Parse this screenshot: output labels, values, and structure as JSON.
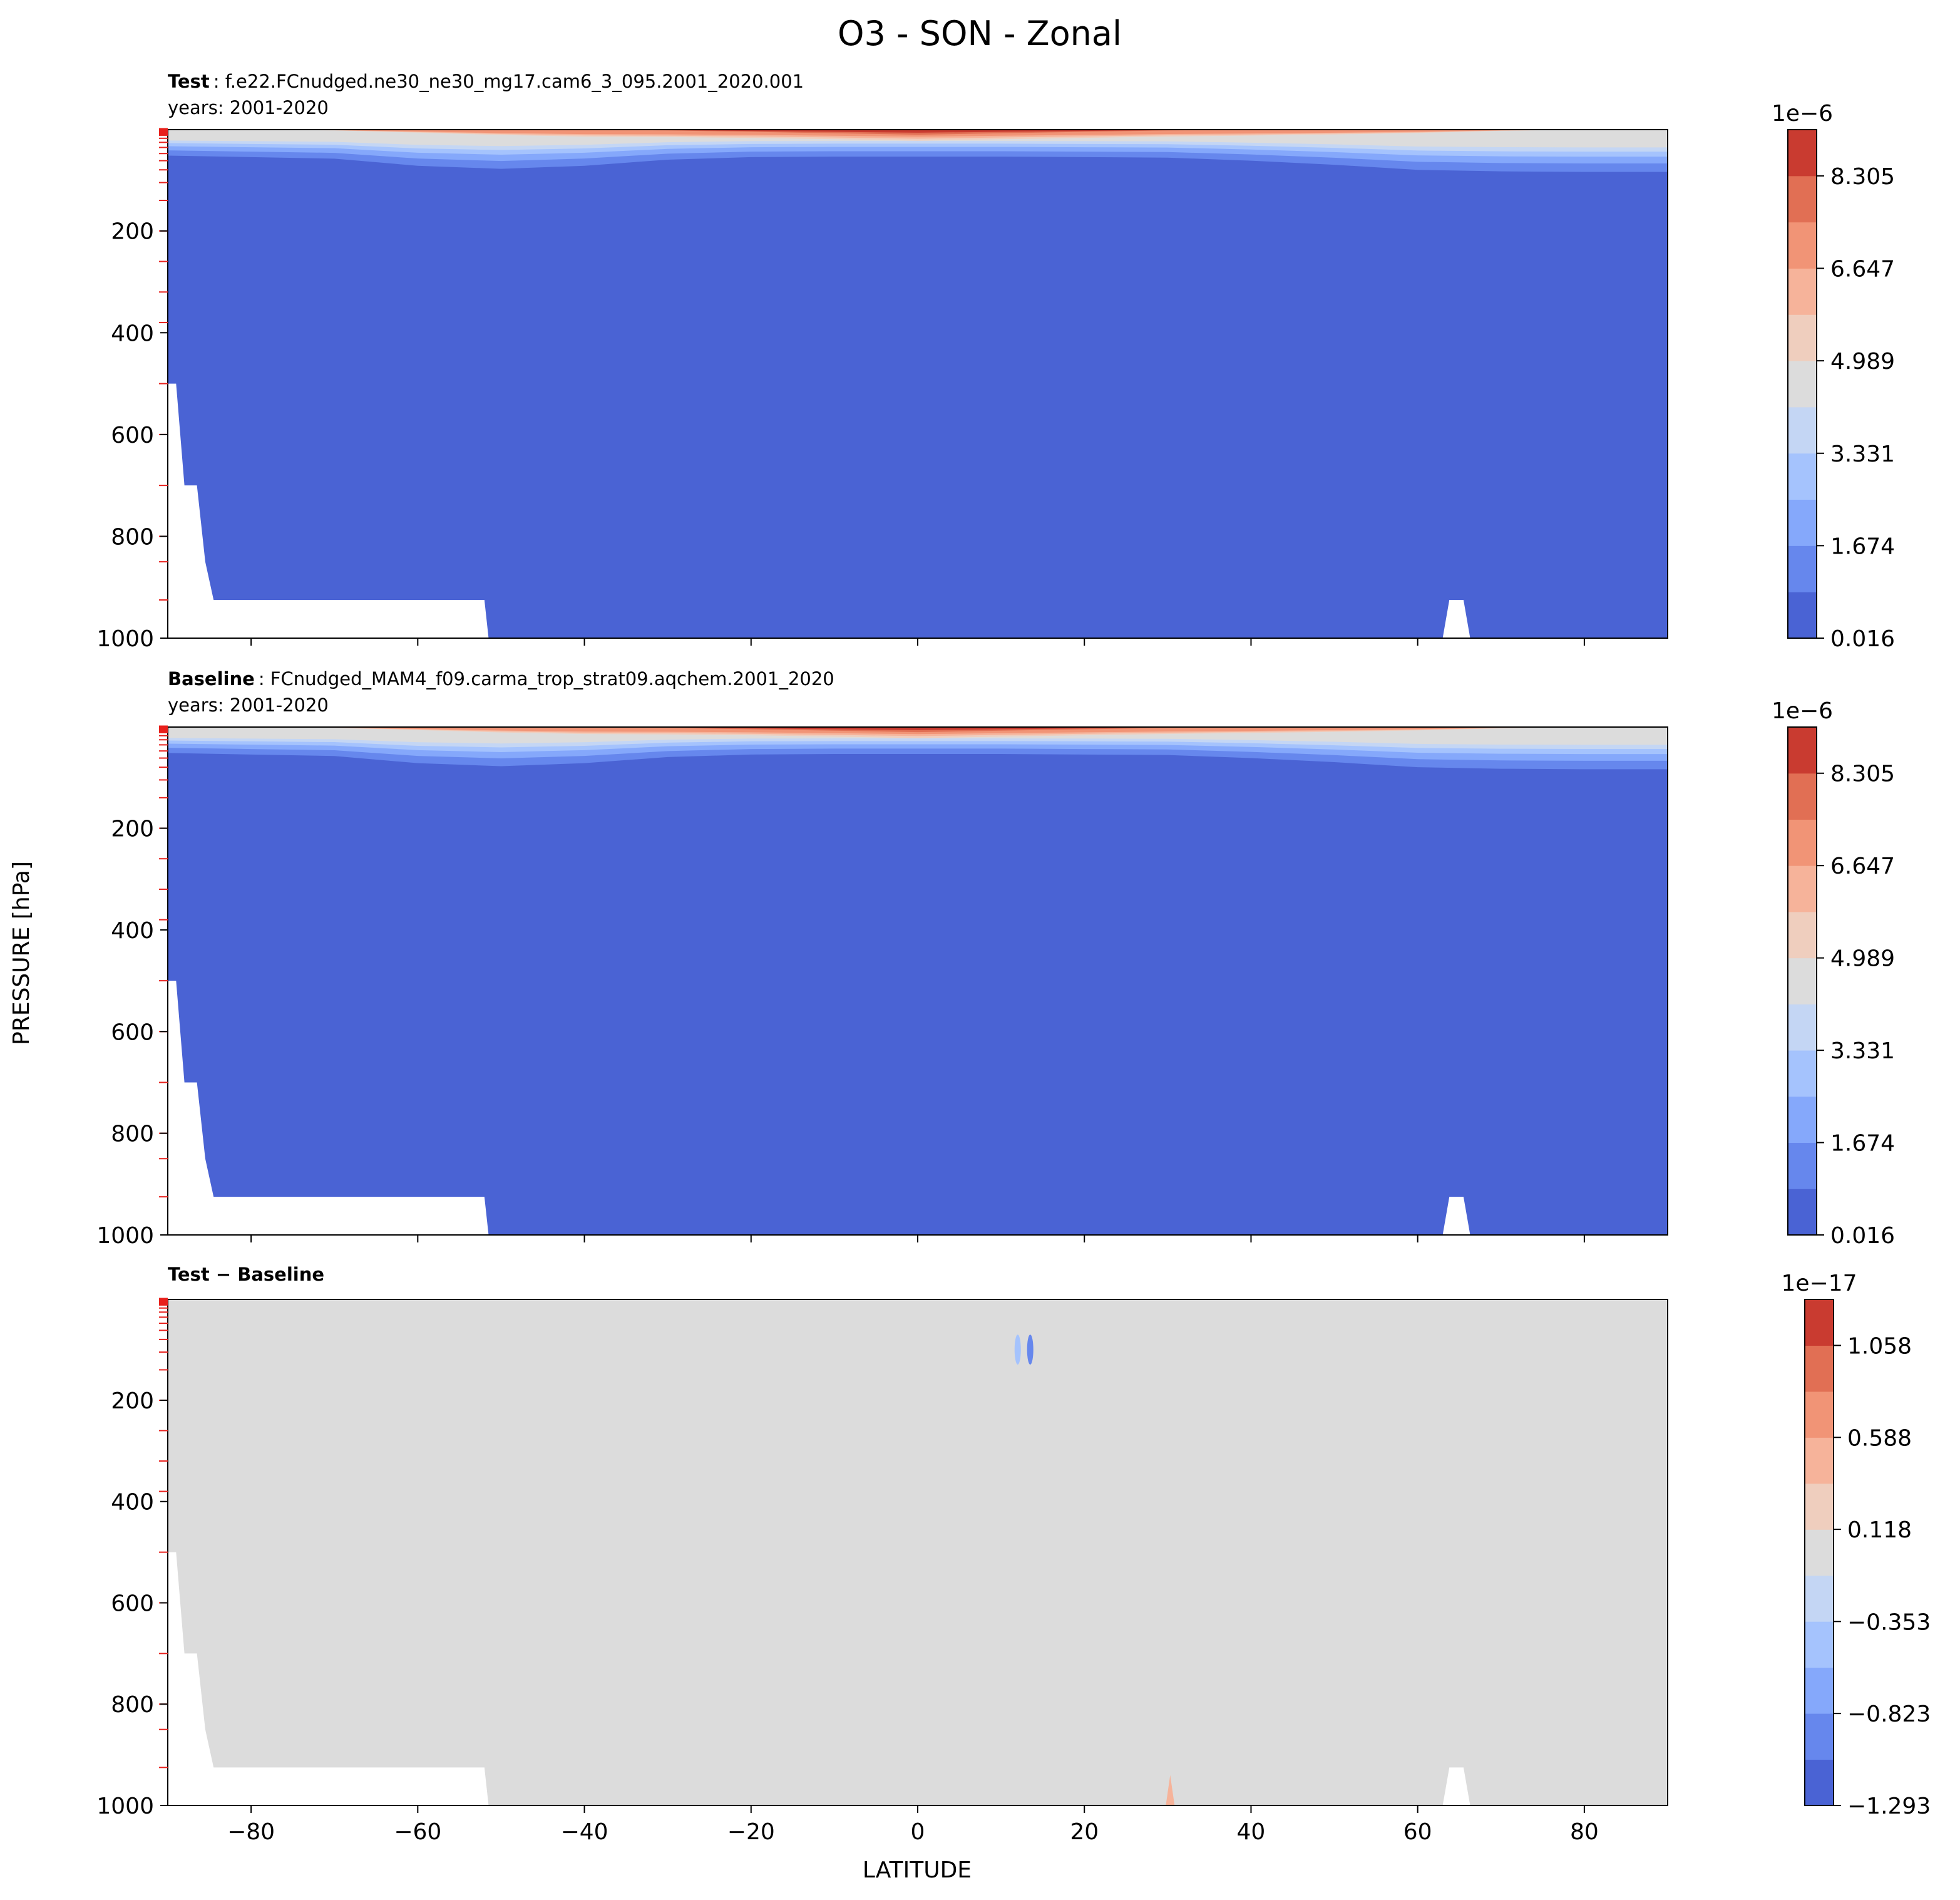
{
  "figure": {
    "title": "O3 - SON - Zonal",
    "ylabel": "PRESSURE [hPa]",
    "xlabel": "LATITUDE"
  },
  "chart_data": [
    {
      "type": "heatmap",
      "title_bold": "Test",
      "title_rest": ": f.e22.FCnudged.ne30_ne30_mg17.cam6_3_095.2001_2020.001",
      "subtitle": "years: 2001-2020",
      "xlim": [
        -90,
        90
      ],
      "ylim": [
        1000,
        1
      ],
      "yaxis": "pressure, inverted",
      "xticks": [
        -80,
        -60,
        -40,
        -20,
        0,
        20,
        40,
        60,
        80
      ],
      "yticks": [
        200,
        400,
        600,
        800,
        1000
      ],
      "colorbar": {
        "exponent": "1e−6",
        "range": [
          0.016,
          9.134
        ],
        "ticks": [
          0.016,
          1.674,
          3.331,
          4.989,
          6.647,
          8.305
        ],
        "tick_labels": [
          "0.016",
          "1.674",
          "3.331",
          "4.989",
          "6.647",
          "8.305"
        ],
        "colors": [
          "#4a63d4",
          "#6687ed",
          "#85a8fb",
          "#a5c3fd",
          "#c4d6f4",
          "#dcdcdc",
          "#efcebe",
          "#f6b39a",
          "#f19476",
          "#e16f54",
          "#c93b30"
        ]
      }
    },
    {
      "type": "heatmap",
      "title_bold": "Baseline",
      "title_rest": ": FCnudged_MAM4_f09.carma_trop_strat09.aqchem.2001_2020",
      "subtitle": "years: 2001-2020",
      "xlim": [
        -90,
        90
      ],
      "ylim": [
        1000,
        1
      ],
      "yaxis": "pressure, inverted",
      "xticks": [
        -80,
        -60,
        -40,
        -20,
        0,
        20,
        40,
        60,
        80
      ],
      "yticks": [
        200,
        400,
        600,
        800,
        1000
      ],
      "colorbar": {
        "exponent": "1e−6",
        "range": [
          0.016,
          9.134
        ],
        "ticks": [
          0.016,
          1.674,
          3.331,
          4.989,
          6.647,
          8.305
        ],
        "tick_labels": [
          "0.016",
          "1.674",
          "3.331",
          "4.989",
          "6.647",
          "8.305"
        ],
        "colors": [
          "#4a63d4",
          "#6687ed",
          "#85a8fb",
          "#a5c3fd",
          "#c4d6f4",
          "#dcdcdc",
          "#efcebe",
          "#f6b39a",
          "#f19476",
          "#e16f54",
          "#c93b30"
        ]
      }
    },
    {
      "type": "heatmap",
      "title_bold": "Test − Baseline",
      "xlim": [
        -90,
        90
      ],
      "ylim": [
        1000,
        1
      ],
      "yaxis": "pressure, inverted",
      "xticks": [
        -80,
        -60,
        -40,
        -20,
        0,
        20,
        40,
        60,
        80
      ],
      "yticks": [
        200,
        400,
        600,
        800,
        1000
      ],
      "colorbar": {
        "exponent": "1e−17",
        "range": [
          -1.293,
          1.293
        ],
        "ticks": [
          -1.293,
          -0.823,
          -0.353,
          0.118,
          0.588,
          1.058
        ],
        "tick_labels": [
          "−1.293",
          "−0.823",
          "−0.353",
          "0.118",
          "0.588",
          "1.058"
        ],
        "colors": [
          "#4a63d4",
          "#6687ed",
          "#85a8fb",
          "#a5c3fd",
          "#c4d6f4",
          "#dcdcdc",
          "#efcebe",
          "#f6b39a",
          "#f19476",
          "#e16f54",
          "#c93b30"
        ]
      }
    }
  ]
}
